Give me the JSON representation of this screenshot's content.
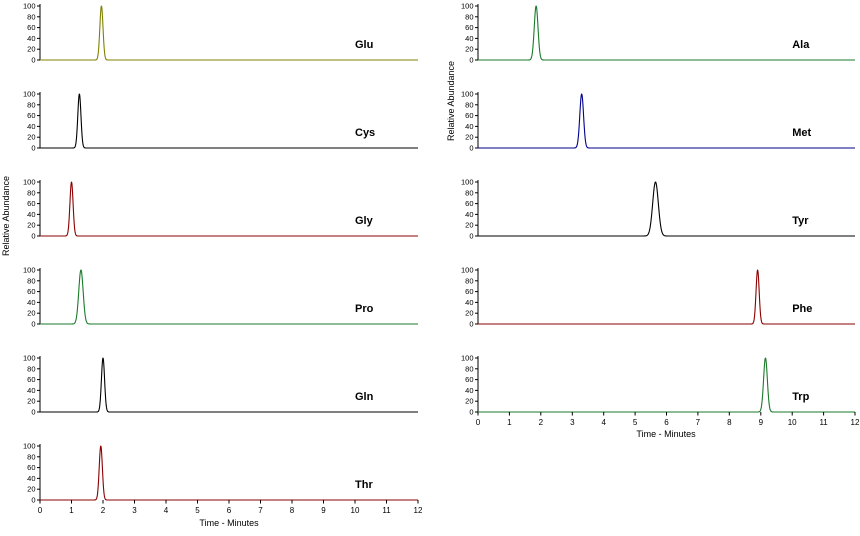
{
  "chart_data": {
    "type": "line",
    "description": "Extracted ion chromatograms of amino acids, one peak per panel",
    "xlabel": "Time - Minutes",
    "ylabel": "Relative Abundance",
    "xlim": [
      0,
      12
    ],
    "ylim": [
      0,
      100
    ],
    "x_ticks": [
      0,
      1,
      2,
      3,
      4,
      5,
      6,
      7,
      8,
      9,
      10,
      11,
      12
    ],
    "y_ticks": [
      0,
      20,
      40,
      60,
      80,
      100
    ],
    "grid": false,
    "legend": "none",
    "columns": [
      {
        "name": "left",
        "panels": [
          {
            "label": "Glu",
            "retention_time_min": 1.95,
            "peak_height": 100,
            "peak_sigma_min": 0.05,
            "color": "#808000"
          },
          {
            "label": "Cys",
            "retention_time_min": 1.25,
            "peak_height": 100,
            "peak_sigma_min": 0.05,
            "color": "#000000"
          },
          {
            "label": "Gly",
            "retention_time_min": 1.0,
            "peak_height": 100,
            "peak_sigma_min": 0.05,
            "color": "#8b0000"
          },
          {
            "label": "Pro",
            "retention_time_min": 1.3,
            "peak_height": 100,
            "peak_sigma_min": 0.07,
            "color": "#1a7a2a"
          },
          {
            "label": "Gln",
            "retention_time_min": 2.0,
            "peak_height": 100,
            "peak_sigma_min": 0.05,
            "color": "#000000"
          },
          {
            "label": "Thr",
            "retention_time_min": 1.93,
            "peak_height": 100,
            "peak_sigma_min": 0.05,
            "color": "#8b0000"
          }
        ]
      },
      {
        "name": "right",
        "panels": [
          {
            "label": "Ala",
            "retention_time_min": 1.85,
            "peak_height": 100,
            "peak_sigma_min": 0.06,
            "color": "#1a7a2a"
          },
          {
            "label": "Met",
            "retention_time_min": 3.3,
            "peak_height": 100,
            "peak_sigma_min": 0.06,
            "color": "#00008b"
          },
          {
            "label": "Tyr",
            "retention_time_min": 5.65,
            "peak_height": 100,
            "peak_sigma_min": 0.09,
            "color": "#000000"
          },
          {
            "label": "Phe",
            "retention_time_min": 8.9,
            "peak_height": 100,
            "peak_sigma_min": 0.05,
            "color": "#8b0000"
          },
          {
            "label": "Trp",
            "retention_time_min": 9.15,
            "peak_height": 100,
            "peak_sigma_min": 0.06,
            "color": "#1a7a2a"
          }
        ]
      }
    ]
  }
}
